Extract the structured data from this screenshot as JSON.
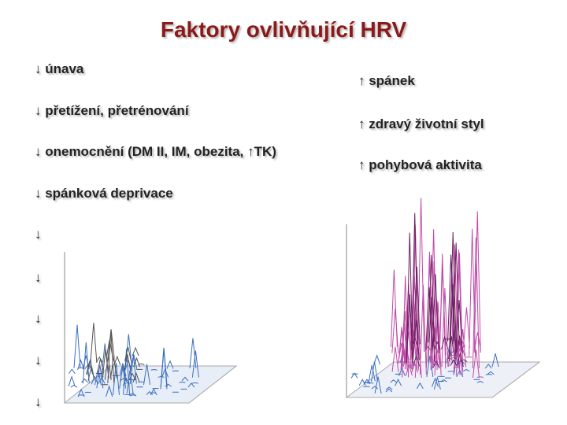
{
  "header": {
    "title": "Faktory ovlivňující HRV"
  },
  "left_list": {
    "items": [
      "↓ únava",
      "↓ přetížení, přetrénování",
      "↓ onemocnění (DM II, IM, obezita, ↑TK)",
      "↓ spánková deprivace",
      "↓",
      "↓",
      "↓",
      "↓",
      "↓"
    ]
  },
  "right_list": {
    "items": [
      "↑ spánek",
      "↑  zdravý životní styl",
      "↑  pohybová aktivita"
    ]
  }
}
